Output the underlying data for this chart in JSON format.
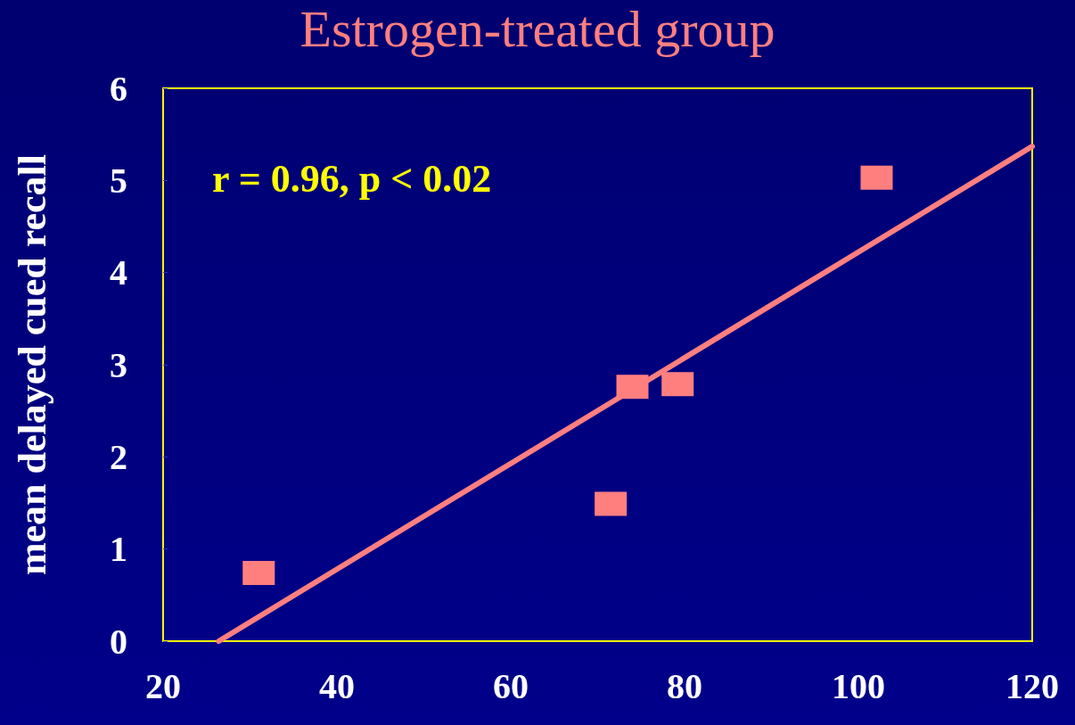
{
  "chart_data": {
    "type": "scatter",
    "title": "Estrogen-treated group",
    "ylabel": "mean delayed cued recall",
    "annotations": [
      "r = 0.96, p < 0.02"
    ],
    "marker": "square",
    "grid": false,
    "xlim": [
      20,
      120
    ],
    "xticks": [
      20,
      40,
      60,
      80,
      100,
      120
    ],
    "ylim": [
      0,
      6
    ],
    "yticks": [
      0,
      1,
      2,
      3,
      4,
      5,
      6
    ],
    "series": [
      {
        "color": "#ff7f7f",
        "x": [
          31,
          71.5,
          74,
          79.2,
          102.1
        ],
        "values": [
          0.74,
          1.49,
          2.76,
          2.79,
          5.03
        ]
      },
      {
        "type": "line",
        "color": "#ff7f7f",
        "line_style": "solid",
        "marker": "none",
        "x": [
          26.4,
          120
        ],
        "values": [
          0,
          5.37
        ]
      }
    ]
  }
}
